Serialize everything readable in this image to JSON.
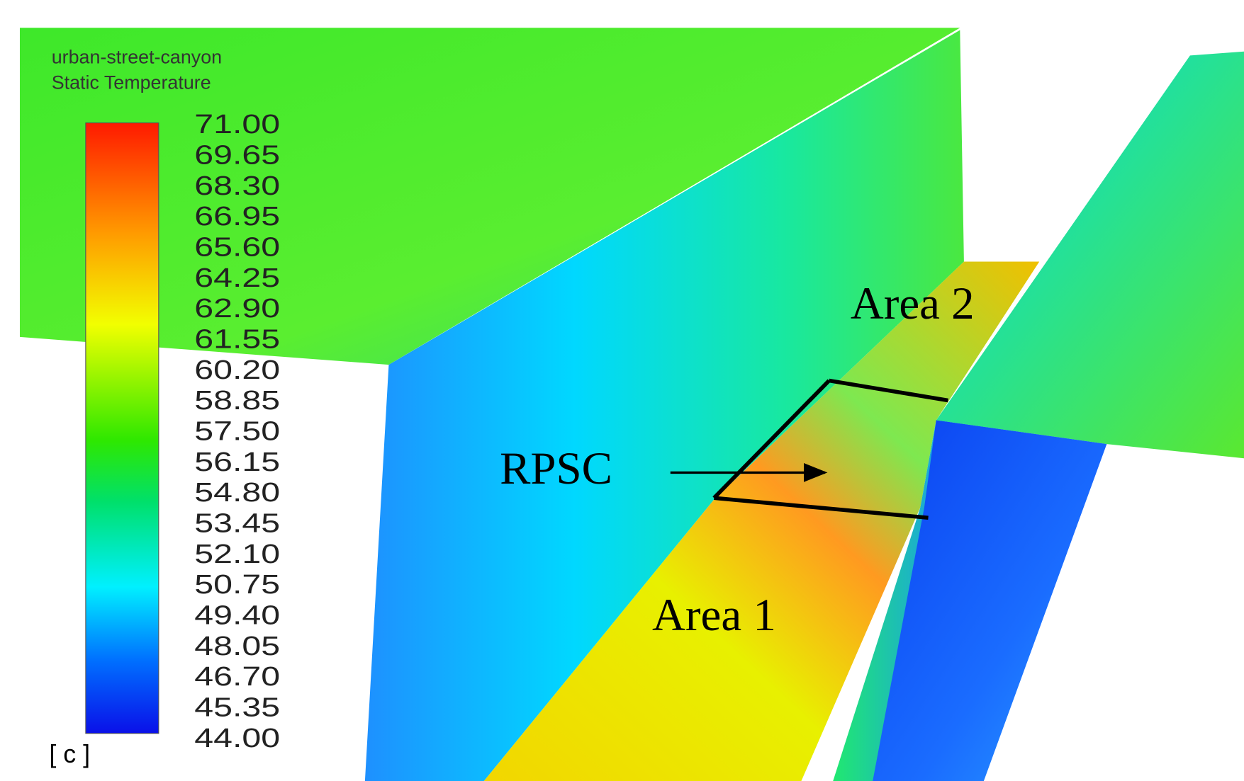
{
  "legend": {
    "title_lines": [
      "urban-street-canyon",
      "Static Temperature"
    ],
    "tick_labels": [
      "71.00",
      "69.65",
      "68.30",
      "66.95",
      "65.60",
      "64.25",
      "62.90",
      "61.55",
      "60.20",
      "58.85",
      "57.50",
      "56.15",
      "54.80",
      "53.45",
      "52.10",
      "50.75",
      "49.40",
      "48.05",
      "46.70",
      "45.35",
      "44.00"
    ],
    "unit": "[ c ]"
  },
  "annotations": {
    "area_2": "Area 2",
    "rpsc": "RPSC",
    "area_1": "Area 1"
  }
}
